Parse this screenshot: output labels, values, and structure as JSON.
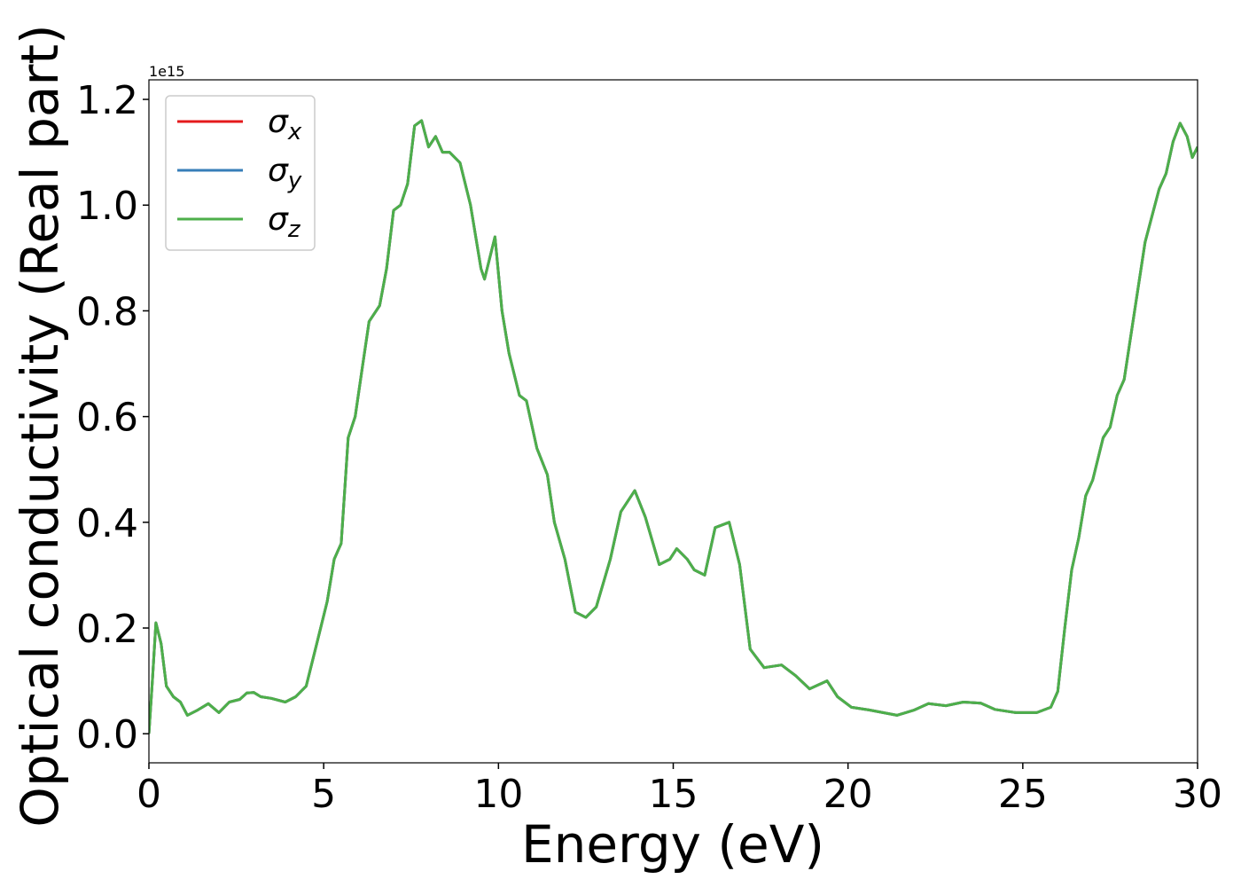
{
  "chart_data": {
    "type": "line",
    "x_label": "Energy (eV)",
    "y_label": "Optical conductivity (Real part)",
    "y_offset_label": "1e15",
    "xlim": [
      0,
      30
    ],
    "ylim": [
      -0.055,
      1.237
    ],
    "xticks": [
      0,
      5,
      10,
      15,
      20,
      25,
      30
    ],
    "yticks": [
      {
        "value": 0,
        "label": "0.0"
      },
      0.2,
      0.4,
      0.6,
      0.8,
      {
        "value": 1,
        "label": "1.0"
      },
      1.2
    ],
    "legend": "upper left",
    "x": [
      0,
      0.1,
      0.2,
      0.35,
      0.5,
      0.7,
      0.9,
      1.1,
      1.4,
      1.7,
      2.0,
      2.3,
      2.6,
      2.8,
      3.0,
      3.2,
      3.5,
      3.9,
      4.2,
      4.5,
      4.8,
      5.1,
      5.3,
      5.5,
      5.7,
      5.9,
      6.1,
      6.3,
      6.6,
      6.8,
      7.0,
      7.2,
      7.4,
      7.6,
      7.8,
      8.0,
      8.2,
      8.4,
      8.6,
      8.9,
      9.2,
      9.5,
      9.6,
      9.9,
      10.1,
      10.3,
      10.6,
      10.8,
      11.1,
      11.4,
      11.6,
      11.9,
      12.2,
      12.5,
      12.8,
      13.2,
      13.5,
      13.9,
      14.2,
      14.6,
      14.9,
      15.1,
      15.4,
      15.6,
      15.9,
      16.2,
      16.6,
      16.9,
      17.2,
      17.6,
      18.1,
      18.5,
      18.9,
      19.4,
      19.7,
      20.1,
      20.6,
      21.0,
      21.4,
      21.9,
      22.3,
      22.8,
      23.3,
      23.8,
      24.2,
      24.8,
      25.4,
      25.8,
      26.0,
      26.2,
      26.4,
      26.6,
      26.8,
      27.0,
      27.3,
      27.5,
      27.7,
      27.9,
      28.2,
      28.5,
      28.9,
      29.1,
      29.3,
      29.5,
      29.7,
      29.85,
      30.0
    ],
    "series": [
      {
        "name": "σx",
        "color": "#e41a1c",
        "values": [
          0,
          0.1,
          0.21,
          0.17,
          0.09,
          0.07,
          0.06,
          0.035,
          0.045,
          0.057,
          0.04,
          0.06,
          0.065,
          0.077,
          0.078,
          0.07,
          0.067,
          0.06,
          0.07,
          0.09,
          0.17,
          0.25,
          0.33,
          0.36,
          0.56,
          0.6,
          0.69,
          0.78,
          0.81,
          0.88,
          0.99,
          1.0,
          1.04,
          1.15,
          1.16,
          1.11,
          1.13,
          1.1,
          1.1,
          1.08,
          1.0,
          0.88,
          0.86,
          0.94,
          0.8,
          0.72,
          0.64,
          0.63,
          0.54,
          0.49,
          0.4,
          0.33,
          0.23,
          0.22,
          0.24,
          0.33,
          0.42,
          0.46,
          0.41,
          0.32,
          0.33,
          0.35,
          0.33,
          0.31,
          0.3,
          0.39,
          0.4,
          0.32,
          0.16,
          0.125,
          0.13,
          0.11,
          0.085,
          0.1,
          0.07,
          0.05,
          0.045,
          0.04,
          0.035,
          0.045,
          0.057,
          0.053,
          0.06,
          0.058,
          0.046,
          0.04,
          0.04,
          0.05,
          0.08,
          0.2,
          0.31,
          0.37,
          0.45,
          0.48,
          0.56,
          0.58,
          0.64,
          0.67,
          0.8,
          0.93,
          1.03,
          1.06,
          1.12,
          1.155,
          1.13,
          1.09,
          1.11
        ]
      },
      {
        "name": "σy",
        "color": "#377eb8",
        "values": [
          0,
          0.1,
          0.21,
          0.17,
          0.09,
          0.07,
          0.06,
          0.035,
          0.045,
          0.057,
          0.04,
          0.06,
          0.065,
          0.077,
          0.078,
          0.07,
          0.067,
          0.06,
          0.07,
          0.09,
          0.17,
          0.25,
          0.33,
          0.36,
          0.56,
          0.6,
          0.69,
          0.78,
          0.81,
          0.88,
          0.99,
          1.0,
          1.04,
          1.15,
          1.16,
          1.11,
          1.13,
          1.1,
          1.1,
          1.08,
          1.0,
          0.88,
          0.86,
          0.94,
          0.8,
          0.72,
          0.64,
          0.63,
          0.54,
          0.49,
          0.4,
          0.33,
          0.23,
          0.22,
          0.24,
          0.33,
          0.42,
          0.46,
          0.41,
          0.32,
          0.33,
          0.35,
          0.33,
          0.31,
          0.3,
          0.39,
          0.4,
          0.32,
          0.16,
          0.125,
          0.13,
          0.11,
          0.085,
          0.1,
          0.07,
          0.05,
          0.045,
          0.04,
          0.035,
          0.045,
          0.057,
          0.053,
          0.06,
          0.058,
          0.046,
          0.04,
          0.04,
          0.05,
          0.08,
          0.2,
          0.31,
          0.37,
          0.45,
          0.48,
          0.56,
          0.58,
          0.64,
          0.67,
          0.8,
          0.93,
          1.03,
          1.06,
          1.12,
          1.155,
          1.13,
          1.09,
          1.11
        ]
      },
      {
        "name": "σz",
        "color": "#4daf4a",
        "values": [
          0,
          0.1,
          0.21,
          0.17,
          0.09,
          0.07,
          0.06,
          0.035,
          0.045,
          0.057,
          0.04,
          0.06,
          0.065,
          0.077,
          0.078,
          0.07,
          0.067,
          0.06,
          0.07,
          0.09,
          0.17,
          0.25,
          0.33,
          0.36,
          0.56,
          0.6,
          0.69,
          0.78,
          0.81,
          0.88,
          0.99,
          1.0,
          1.04,
          1.15,
          1.16,
          1.11,
          1.13,
          1.1,
          1.1,
          1.08,
          1.0,
          0.88,
          0.86,
          0.94,
          0.8,
          0.72,
          0.64,
          0.63,
          0.54,
          0.49,
          0.4,
          0.33,
          0.23,
          0.22,
          0.24,
          0.33,
          0.42,
          0.46,
          0.41,
          0.32,
          0.33,
          0.35,
          0.33,
          0.31,
          0.3,
          0.39,
          0.4,
          0.32,
          0.16,
          0.125,
          0.13,
          0.11,
          0.085,
          0.1,
          0.07,
          0.05,
          0.045,
          0.04,
          0.035,
          0.045,
          0.057,
          0.053,
          0.06,
          0.058,
          0.046,
          0.04,
          0.04,
          0.05,
          0.08,
          0.2,
          0.31,
          0.37,
          0.45,
          0.48,
          0.56,
          0.58,
          0.64,
          0.67,
          0.8,
          0.93,
          1.03,
          1.06,
          1.12,
          1.155,
          1.13,
          1.09,
          1.11
        ]
      }
    ]
  }
}
